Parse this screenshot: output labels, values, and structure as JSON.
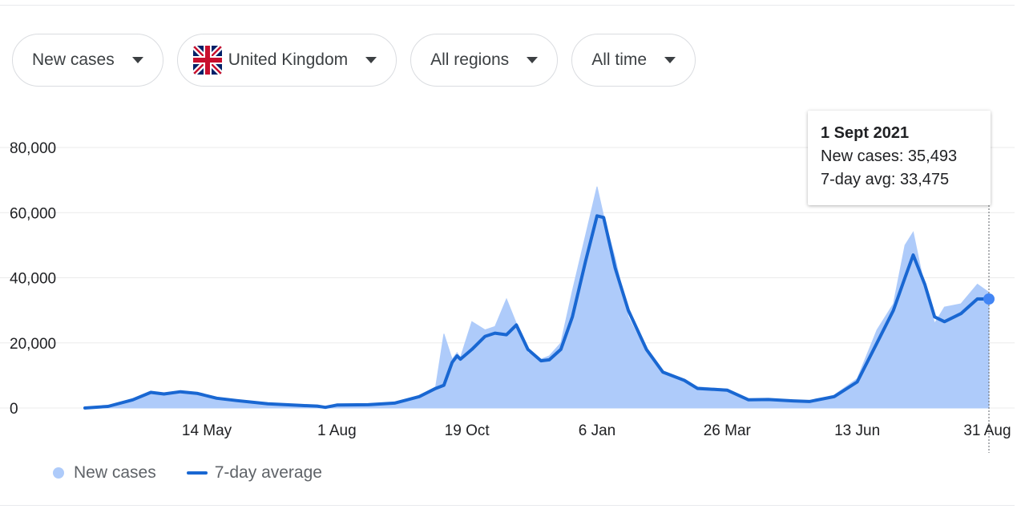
{
  "filters": {
    "metric": "New cases",
    "country": "United Kingdom",
    "region": "All regions",
    "time": "All time"
  },
  "tooltip": {
    "date": "1 Sept 2021",
    "new_cases_text": "New cases: 35,493",
    "avg_text": "7-day avg: 33,475"
  },
  "legend": {
    "new_cases": "New cases",
    "avg": "7-day average"
  },
  "colors": {
    "bars": "#aecbfa",
    "line": "#1967d2",
    "marker": "#4285f4",
    "grid": "#ebebeb"
  },
  "chart_data": {
    "type": "area",
    "title": "",
    "xlabel": "",
    "ylabel": "",
    "ylim": [
      0,
      80000
    ],
    "y_ticks": [
      0,
      20000,
      40000,
      60000,
      80000
    ],
    "y_tick_labels": [
      "0",
      "20,000",
      "40,000",
      "60,000",
      "80,000"
    ],
    "x_tick_labels": [
      "14 May",
      "1 Aug",
      "19 Oct",
      "6 Jan",
      "26 Mar",
      "13 Jun",
      "31 Aug"
    ],
    "x_tick_dates": [
      "2020-05-14",
      "2020-08-01",
      "2020-10-19",
      "2021-01-06",
      "2021-03-26",
      "2021-06-13",
      "2021-08-31"
    ],
    "x_range": [
      "2020-03-01",
      "2021-09-01"
    ],
    "grid": true,
    "legend_position": "bottom-left",
    "series": [
      {
        "name": "7-day average",
        "points": [
          [
            "2020-03-01",
            0
          ],
          [
            "2020-03-15",
            500
          ],
          [
            "2020-03-30",
            2500
          ],
          [
            "2020-04-10",
            4800
          ],
          [
            "2020-04-18",
            4300
          ],
          [
            "2020-04-28",
            5000
          ],
          [
            "2020-05-08",
            4500
          ],
          [
            "2020-05-20",
            3000
          ],
          [
            "2020-06-01",
            2300
          ],
          [
            "2020-06-20",
            1300
          ],
          [
            "2020-07-10",
            800
          ],
          [
            "2020-07-20",
            600
          ],
          [
            "2020-07-25",
            200
          ],
          [
            "2020-08-01",
            900
          ],
          [
            "2020-08-20",
            1000
          ],
          [
            "2020-09-05",
            1500
          ],
          [
            "2020-09-20",
            3500
          ],
          [
            "2020-09-30",
            6000
          ],
          [
            "2020-10-05",
            7000
          ],
          [
            "2020-10-10",
            14000
          ],
          [
            "2020-10-13",
            16000
          ],
          [
            "2020-10-15",
            15000
          ],
          [
            "2020-10-22",
            18000
          ],
          [
            "2020-10-30",
            22000
          ],
          [
            "2020-11-05",
            23000
          ],
          [
            "2020-11-12",
            22500
          ],
          [
            "2020-11-18",
            25500
          ],
          [
            "2020-11-25",
            18000
          ],
          [
            "2020-12-03",
            14500
          ],
          [
            "2020-12-08",
            14800
          ],
          [
            "2020-12-15",
            18000
          ],
          [
            "2020-12-22",
            28000
          ],
          [
            "2020-12-30",
            45000
          ],
          [
            "2021-01-06",
            59000
          ],
          [
            "2021-01-10",
            58500
          ],
          [
            "2021-01-17",
            43000
          ],
          [
            "2021-01-25",
            30000
          ],
          [
            "2021-02-05",
            18000
          ],
          [
            "2021-02-15",
            11000
          ],
          [
            "2021-02-28",
            8500
          ],
          [
            "2021-03-08",
            6000
          ],
          [
            "2021-03-26",
            5500
          ],
          [
            "2021-04-08",
            2500
          ],
          [
            "2021-04-20",
            2600
          ],
          [
            "2021-05-05",
            2200
          ],
          [
            "2021-05-15",
            2000
          ],
          [
            "2021-05-30",
            3500
          ],
          [
            "2021-06-13",
            8000
          ],
          [
            "2021-06-25",
            20000
          ],
          [
            "2021-07-05",
            30000
          ],
          [
            "2021-07-12",
            40000
          ],
          [
            "2021-07-17",
            47000
          ],
          [
            "2021-07-24",
            38000
          ],
          [
            "2021-07-30",
            28000
          ],
          [
            "2021-08-05",
            26500
          ],
          [
            "2021-08-15",
            29000
          ],
          [
            "2021-08-25",
            33500
          ],
          [
            "2021-09-01",
            33475
          ]
        ]
      },
      {
        "name": "New cases",
        "points": [
          [
            "2020-03-01",
            0
          ],
          [
            "2020-03-15",
            500
          ],
          [
            "2020-03-30",
            2600
          ],
          [
            "2020-04-10",
            5200
          ],
          [
            "2020-04-18",
            4200
          ],
          [
            "2020-04-28",
            5300
          ],
          [
            "2020-05-08",
            4400
          ],
          [
            "2020-05-20",
            3100
          ],
          [
            "2020-06-01",
            2200
          ],
          [
            "2020-06-20",
            1200
          ],
          [
            "2020-07-10",
            800
          ],
          [
            "2020-07-20",
            600
          ],
          [
            "2020-07-25",
            200
          ],
          [
            "2020-08-01",
            900
          ],
          [
            "2020-08-20",
            1100
          ],
          [
            "2020-09-05",
            1600
          ],
          [
            "2020-09-20",
            3700
          ],
          [
            "2020-09-30",
            6500
          ],
          [
            "2020-10-05",
            22800
          ],
          [
            "2020-10-10",
            15000
          ],
          [
            "2020-10-13",
            17000
          ],
          [
            "2020-10-15",
            15500
          ],
          [
            "2020-10-22",
            26500
          ],
          [
            "2020-10-30",
            24000
          ],
          [
            "2020-11-05",
            25000
          ],
          [
            "2020-11-12",
            33500
          ],
          [
            "2020-11-18",
            26000
          ],
          [
            "2020-11-25",
            17000
          ],
          [
            "2020-12-03",
            15000
          ],
          [
            "2020-12-08",
            16000
          ],
          [
            "2020-12-15",
            20000
          ],
          [
            "2020-12-22",
            36000
          ],
          [
            "2020-12-30",
            53000
          ],
          [
            "2021-01-06",
            68000
          ],
          [
            "2021-01-10",
            59000
          ],
          [
            "2021-01-17",
            46000
          ],
          [
            "2021-01-25",
            28000
          ],
          [
            "2021-02-05",
            17000
          ],
          [
            "2021-02-15",
            10500
          ],
          [
            "2021-02-28",
            8000
          ],
          [
            "2021-03-08",
            6500
          ],
          [
            "2021-03-26",
            5800
          ],
          [
            "2021-04-08",
            2700
          ],
          [
            "2021-04-20",
            2900
          ],
          [
            "2021-05-05",
            2300
          ],
          [
            "2021-05-15",
            2100
          ],
          [
            "2021-05-30",
            4000
          ],
          [
            "2021-06-13",
            9000
          ],
          [
            "2021-06-25",
            24000
          ],
          [
            "2021-07-05",
            32000
          ],
          [
            "2021-07-12",
            50000
          ],
          [
            "2021-07-17",
            54000
          ],
          [
            "2021-07-24",
            37000
          ],
          [
            "2021-07-30",
            26000
          ],
          [
            "2021-08-05",
            31000
          ],
          [
            "2021-08-15",
            32000
          ],
          [
            "2021-08-25",
            38000
          ],
          [
            "2021-09-01",
            35493
          ]
        ]
      }
    ],
    "highlight": {
      "date": "2021-09-01",
      "new_cases": 35493,
      "avg": 33475
    }
  }
}
